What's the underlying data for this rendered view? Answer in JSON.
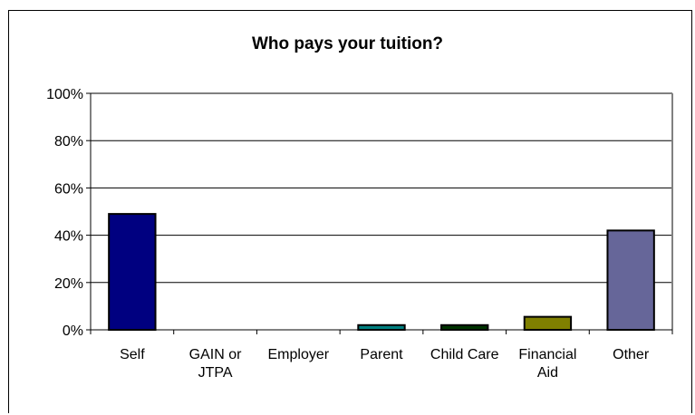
{
  "chart_data": {
    "type": "bar",
    "title": "Who pays your tuition?",
    "xlabel": "",
    "ylabel": "",
    "categories": [
      [
        "Self"
      ],
      [
        "GAIN or",
        "JTPA"
      ],
      [
        "Employer"
      ],
      [
        "Parent"
      ],
      [
        "Child Care"
      ],
      [
        "Financial",
        "Aid"
      ],
      [
        "Other"
      ]
    ],
    "values": [
      49,
      0,
      0,
      2,
      2,
      5.5,
      42
    ],
    "bar_colors": [
      "#000080",
      "#000080",
      "#000080",
      "#008080",
      "#003300",
      "#808000",
      "#666699"
    ],
    "ylim": [
      0,
      100
    ],
    "yticks": [
      0,
      20,
      40,
      60,
      80,
      100
    ],
    "ytick_labels": [
      "0%",
      "20%",
      "40%",
      "60%",
      "80%",
      "100%"
    ],
    "grid": true,
    "legend": "none",
    "plot_border_color": "#808080"
  }
}
